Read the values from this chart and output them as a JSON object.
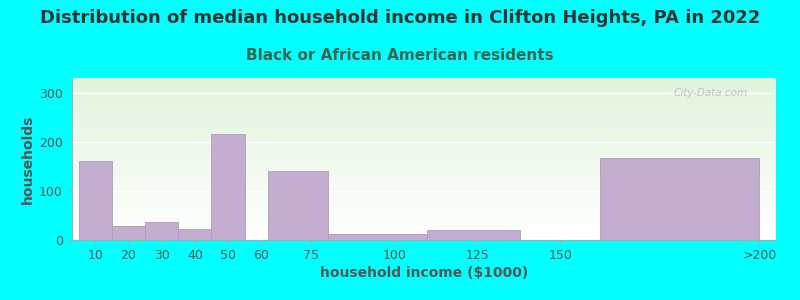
{
  "title": "Distribution of median household income in Clifton Heights, PA in 2022",
  "subtitle": "Black or African American residents",
  "xlabel": "household income ($1000)",
  "ylabel": "households",
  "background_color": "#00FFFF",
  "bar_color": "#c4aed0",
  "bar_edge_color": "#b09abe",
  "categories": [
    "10",
    "20",
    "30",
    "40",
    "50",
    "60",
    "75",
    "100",
    "125",
    "150",
    ">200"
  ],
  "values": [
    160,
    28,
    37,
    22,
    215,
    0,
    140,
    12,
    20,
    0,
    168
  ],
  "x_left": [
    5,
    15,
    25,
    35,
    45,
    55,
    62,
    80,
    110,
    138,
    162
  ],
  "x_right": [
    15,
    25,
    35,
    45,
    55,
    62,
    80,
    110,
    138,
    162,
    210
  ],
  "xtick_pos": [
    10,
    20,
    30,
    40,
    50,
    60,
    75,
    100,
    125,
    150,
    210
  ],
  "xlim": [
    3,
    215
  ],
  "ylim": [
    0,
    330
  ],
  "yticks": [
    0,
    100,
    200,
    300
  ],
  "watermark": "City-Data.com",
  "title_color": "#333333",
  "subtitle_color": "#336655",
  "label_color": "#555555",
  "title_fontsize": 13,
  "subtitle_fontsize": 11,
  "axis_label_fontsize": 10,
  "tick_fontsize": 9
}
